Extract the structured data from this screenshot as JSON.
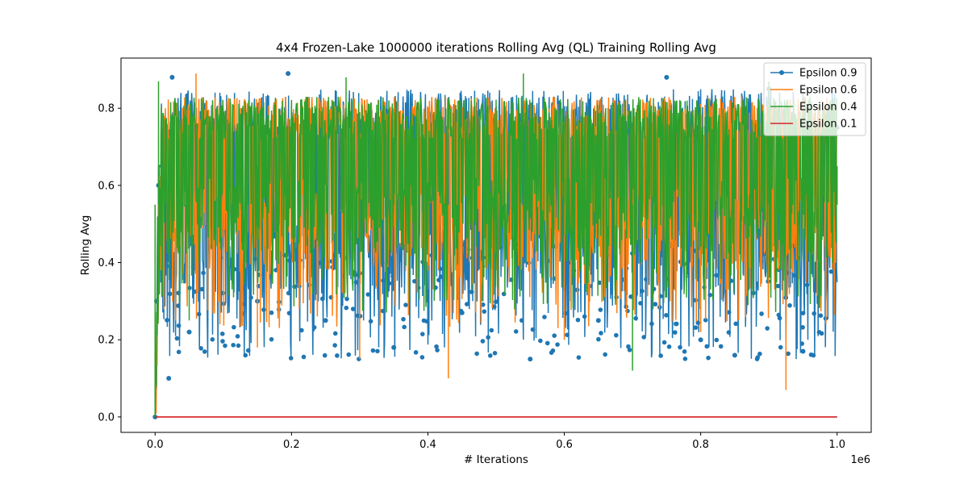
{
  "chart_data": {
    "type": "line",
    "title": "4x4 Frozen-Lake 1000000 iterations  Rolling Avg (QL) Training Rolling Avg",
    "xlabel": "# Iterations",
    "ylabel": "Rolling Avg",
    "x_offset_label": "1e6",
    "xlim": [
      -50000,
      1050000
    ],
    "ylim": [
      -0.04,
      0.93
    ],
    "x_ticks": [
      0,
      200000,
      400000,
      600000,
      800000,
      1000000
    ],
    "x_tick_labels": [
      "0.0",
      "0.2",
      "0.4",
      "0.6",
      "0.8",
      "1.0"
    ],
    "y_ticks": [
      0.0,
      0.2,
      0.4,
      0.6,
      0.8
    ],
    "y_tick_labels": [
      "0.0",
      "0.2",
      "0.4",
      "0.6",
      "0.8"
    ],
    "grid": false,
    "legend_position": "top-right",
    "series": [
      {
        "name": "Epsilon 0.9",
        "color": "#1f77b4",
        "marker": "circle",
        "x": [
          0,
          2000,
          5000,
          10000,
          20000,
          25000,
          50000,
          100000,
          150000,
          195000,
          250000,
          300000,
          350000,
          400000,
          450000,
          500000,
          550000,
          600000,
          650000,
          700000,
          750000,
          800000,
          850000,
          900000,
          950000,
          1000000
        ],
        "values": [
          0.0,
          0.3,
          0.6,
          0.65,
          0.1,
          0.88,
          0.22,
          0.6,
          0.3,
          0.89,
          0.25,
          0.65,
          0.18,
          0.6,
          0.27,
          0.62,
          0.15,
          0.63,
          0.25,
          0.58,
          0.88,
          0.2,
          0.16,
          0.85,
          0.17,
          0.75
        ]
      },
      {
        "name": "Epsilon 0.6",
        "color": "#ff7f0e",
        "marker": "none",
        "x": [
          0,
          5000,
          10000,
          60000,
          150000,
          250000,
          300000,
          430000,
          550000,
          600000,
          700000,
          800000,
          900000,
          925000,
          1000000
        ],
        "values": [
          0.0,
          0.5,
          0.65,
          0.89,
          0.18,
          0.62,
          0.15,
          0.1,
          0.65,
          0.2,
          0.6,
          0.22,
          0.65,
          0.07,
          0.6
        ]
      },
      {
        "name": "Epsilon 0.4",
        "color": "#2ca02c",
        "marker": "none",
        "x": [
          0,
          5000,
          10000,
          50000,
          150000,
          280000,
          350000,
          540000,
          600000,
          700000,
          715000,
          800000,
          900000,
          1000000
        ],
        "values": [
          0.0,
          0.87,
          0.6,
          0.25,
          0.65,
          0.88,
          0.6,
          0.89,
          0.62,
          0.12,
          0.65,
          0.6,
          0.87,
          0.65
        ]
      },
      {
        "name": "Epsilon 0.1",
        "color": "#d62728",
        "marker": "none",
        "x": [
          0,
          1000000
        ],
        "values": [
          0.0,
          0.0
        ]
      }
    ]
  }
}
